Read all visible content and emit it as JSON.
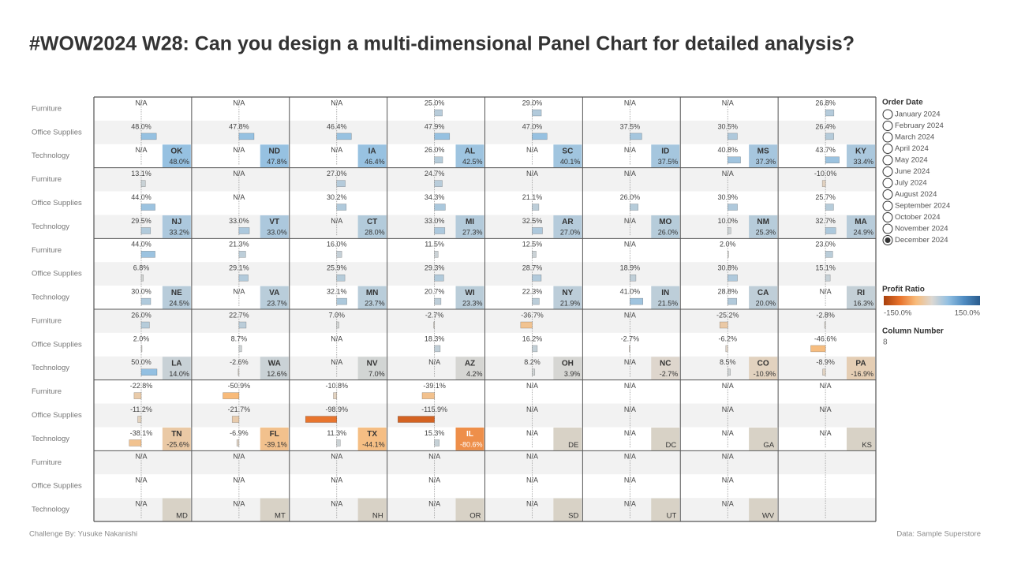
{
  "chart_data": {
    "type": "panel",
    "title": "#WOW2024 W28: Can you design a multi-dimensional Panel Chart for detailed analysis?",
    "categories": [
      "Furniture",
      "Office Supplies",
      "Technology"
    ],
    "panels": [
      {
        "state": "OK",
        "ratio": 48.0,
        "ratio_label": "48.0%",
        "values": [
          null,
          48.0,
          null
        ],
        "value_labels": [
          "N/A",
          "48.0%",
          "N/A"
        ]
      },
      {
        "state": "ND",
        "ratio": 47.8,
        "ratio_label": "47.8%",
        "values": [
          null,
          47.8,
          null
        ],
        "value_labels": [
          "N/A",
          "47.8%",
          "N/A"
        ]
      },
      {
        "state": "IA",
        "ratio": 46.4,
        "ratio_label": "46.4%",
        "values": [
          null,
          46.4,
          null
        ],
        "value_labels": [
          "N/A",
          "46.4%",
          "N/A"
        ]
      },
      {
        "state": "AL",
        "ratio": 42.5,
        "ratio_label": "42.5%",
        "values": [
          25.0,
          47.9,
          26.0
        ],
        "value_labels": [
          "25.0%",
          "47.9%",
          "26.0%"
        ]
      },
      {
        "state": "SC",
        "ratio": 40.1,
        "ratio_label": "40.1%",
        "values": [
          29.0,
          47.0,
          null
        ],
        "value_labels": [
          "29.0%",
          "47.0%",
          "N/A"
        ]
      },
      {
        "state": "ID",
        "ratio": 37.5,
        "ratio_label": "37.5%",
        "values": [
          null,
          37.5,
          null
        ],
        "value_labels": [
          "N/A",
          "37.5%",
          "N/A"
        ]
      },
      {
        "state": "MS",
        "ratio": 37.3,
        "ratio_label": "37.3%",
        "values": [
          null,
          30.5,
          40.8
        ],
        "value_labels": [
          "N/A",
          "30.5%",
          "40.8%"
        ]
      },
      {
        "state": "KY",
        "ratio": 33.4,
        "ratio_label": "33.4%",
        "values": [
          26.8,
          26.4,
          43.7
        ],
        "value_labels": [
          "26.8%",
          "26.4%",
          "43.7%"
        ]
      },
      {
        "state": "NJ",
        "ratio": 33.2,
        "ratio_label": "33.2%",
        "values": [
          13.1,
          44.0,
          29.5
        ],
        "value_labels": [
          "13.1%",
          "44.0%",
          "29.5%"
        ]
      },
      {
        "state": "VT",
        "ratio": 33.0,
        "ratio_label": "33.0%",
        "values": [
          null,
          null,
          33.0
        ],
        "value_labels": [
          "N/A",
          "N/A",
          "33.0%"
        ]
      },
      {
        "state": "CT",
        "ratio": 28.0,
        "ratio_label": "28.0%",
        "values": [
          27.0,
          30.2,
          null
        ],
        "value_labels": [
          "27.0%",
          "30.2%",
          "N/A"
        ]
      },
      {
        "state": "MI",
        "ratio": 27.3,
        "ratio_label": "27.3%",
        "values": [
          24.7,
          34.3,
          33.0
        ],
        "value_labels": [
          "24.7%",
          "34.3%",
          "33.0%"
        ]
      },
      {
        "state": "AR",
        "ratio": 27.0,
        "ratio_label": "27.0%",
        "values": [
          null,
          21.1,
          32.5
        ],
        "value_labels": [
          "N/A",
          "21.1%",
          "32.5%"
        ]
      },
      {
        "state": "MO",
        "ratio": 26.0,
        "ratio_label": "26.0%",
        "values": [
          null,
          26.0,
          null
        ],
        "value_labels": [
          "N/A",
          "26.0%",
          "N/A"
        ]
      },
      {
        "state": "NM",
        "ratio": 25.3,
        "ratio_label": "25.3%",
        "values": [
          null,
          30.9,
          10.0
        ],
        "value_labels": [
          "N/A",
          "30.9%",
          "10.0%"
        ]
      },
      {
        "state": "MA",
        "ratio": 24.9,
        "ratio_label": "24.9%",
        "values": [
          -10.0,
          25.7,
          32.7
        ],
        "value_labels": [
          "-10.0%",
          "25.7%",
          "32.7%"
        ]
      },
      {
        "state": "NE",
        "ratio": 24.5,
        "ratio_label": "24.5%",
        "values": [
          44.0,
          6.8,
          30.0
        ],
        "value_labels": [
          "44.0%",
          "6.8%",
          "30.0%"
        ]
      },
      {
        "state": "VA",
        "ratio": 23.7,
        "ratio_label": "23.7%",
        "values": [
          21.3,
          29.1,
          null
        ],
        "value_labels": [
          "21.3%",
          "29.1%",
          "N/A"
        ]
      },
      {
        "state": "MN",
        "ratio": 23.7,
        "ratio_label": "23.7%",
        "values": [
          16.0,
          25.9,
          32.1
        ],
        "value_labels": [
          "16.0%",
          "25.9%",
          "32.1%"
        ]
      },
      {
        "state": "WI",
        "ratio": 23.3,
        "ratio_label": "23.3%",
        "values": [
          11.5,
          29.3,
          20.7
        ],
        "value_labels": [
          "11.5%",
          "29.3%",
          "20.7%"
        ]
      },
      {
        "state": "NY",
        "ratio": 21.9,
        "ratio_label": "21.9%",
        "values": [
          12.5,
          28.7,
          22.3
        ],
        "value_labels": [
          "12.5%",
          "28.7%",
          "22.3%"
        ]
      },
      {
        "state": "IN",
        "ratio": 21.5,
        "ratio_label": "21.5%",
        "values": [
          null,
          18.9,
          41.0
        ],
        "value_labels": [
          "N/A",
          "18.9%",
          "41.0%"
        ]
      },
      {
        "state": "CA",
        "ratio": 20.0,
        "ratio_label": "20.0%",
        "values": [
          2.0,
          30.8,
          28.8
        ],
        "value_labels": [
          "2.0%",
          "30.8%",
          "28.8%"
        ]
      },
      {
        "state": "RI",
        "ratio": 16.3,
        "ratio_label": "16.3%",
        "values": [
          23.0,
          15.1,
          null
        ],
        "value_labels": [
          "23.0%",
          "15.1%",
          "N/A"
        ]
      },
      {
        "state": "LA",
        "ratio": 14.0,
        "ratio_label": "14.0%",
        "values": [
          26.0,
          2.0,
          50.0
        ],
        "value_labels": [
          "26.0%",
          "2.0%",
          "50.0%"
        ]
      },
      {
        "state": "WA",
        "ratio": 12.6,
        "ratio_label": "12.6%",
        "values": [
          22.7,
          8.7,
          -2.6
        ],
        "value_labels": [
          "22.7%",
          "8.7%",
          "-2.6%"
        ]
      },
      {
        "state": "NV",
        "ratio": 7.0,
        "ratio_label": "7.0%",
        "values": [
          7.0,
          null,
          null
        ],
        "value_labels": [
          "7.0%",
          "N/A",
          "N/A"
        ]
      },
      {
        "state": "AZ",
        "ratio": 4.2,
        "ratio_label": "4.2%",
        "values": [
          -2.7,
          18.3,
          null
        ],
        "value_labels": [
          "-2.7%",
          "18.3%",
          "N/A"
        ]
      },
      {
        "state": "OH",
        "ratio": 3.9,
        "ratio_label": "3.9%",
        "values": [
          -36.7,
          16.2,
          8.2
        ],
        "value_labels": [
          "-36.7%",
          "16.2%",
          "8.2%"
        ]
      },
      {
        "state": "NC",
        "ratio": -2.7,
        "ratio_label": "-2.7%",
        "values": [
          null,
          -2.7,
          null
        ],
        "value_labels": [
          "N/A",
          "-2.7%",
          "N/A"
        ]
      },
      {
        "state": "CO",
        "ratio": -10.9,
        "ratio_label": "-10.9%",
        "values": [
          -25.2,
          -6.2,
          8.5
        ],
        "value_labels": [
          "-25.2%",
          "-6.2%",
          "8.5%"
        ]
      },
      {
        "state": "PA",
        "ratio": -16.9,
        "ratio_label": "-16.9%",
        "values": [
          -2.8,
          -46.6,
          -8.9
        ],
        "value_labels": [
          "-2.8%",
          "-46.6%",
          "-8.9%"
        ]
      },
      {
        "state": "TN",
        "ratio": -25.6,
        "ratio_label": "-25.6%",
        "values": [
          -22.8,
          -11.2,
          -38.1
        ],
        "value_labels": [
          "-22.8%",
          "-11.2%",
          "-38.1%"
        ]
      },
      {
        "state": "FL",
        "ratio": -39.1,
        "ratio_label": "-39.1%",
        "values": [
          -50.9,
          -21.7,
          -6.9
        ],
        "value_labels": [
          "-50.9%",
          "-21.7%",
          "-6.9%"
        ]
      },
      {
        "state": "TX",
        "ratio": -44.1,
        "ratio_label": "-44.1%",
        "values": [
          -10.8,
          -98.9,
          11.3
        ],
        "value_labels": [
          "-10.8%",
          "-98.9%",
          "11.3%"
        ]
      },
      {
        "state": "IL",
        "ratio": -80.6,
        "ratio_label": "-80.6%",
        "values": [
          -39.1,
          -115.9,
          15.3
        ],
        "value_labels": [
          "-39.1%",
          "-115.9%",
          "15.3%"
        ]
      },
      {
        "state": "DE",
        "ratio": null,
        "values": [
          null,
          null,
          null
        ],
        "value_labels": [
          "N/A",
          "N/A",
          "N/A"
        ]
      },
      {
        "state": "DC",
        "ratio": null,
        "values": [
          null,
          null,
          null
        ],
        "value_labels": [
          "N/A",
          "N/A",
          "N/A"
        ]
      },
      {
        "state": "GA",
        "ratio": null,
        "values": [
          null,
          null,
          null
        ],
        "value_labels": [
          "N/A",
          "N/A",
          "N/A"
        ]
      },
      {
        "state": "KS",
        "ratio": null,
        "values": [
          null,
          null,
          null
        ],
        "value_labels": [
          "N/A",
          "N/A",
          "N/A"
        ]
      },
      {
        "state": "MD",
        "ratio": null,
        "values": [
          null,
          null,
          null
        ],
        "value_labels": [
          "N/A",
          "N/A",
          "N/A"
        ]
      },
      {
        "state": "MT",
        "ratio": null,
        "values": [
          null,
          null,
          null
        ],
        "value_labels": [
          "N/A",
          "N/A",
          "N/A"
        ]
      },
      {
        "state": "NH",
        "ratio": null,
        "values": [
          null,
          null,
          null
        ],
        "value_labels": [
          "N/A",
          "N/A",
          "N/A"
        ]
      },
      {
        "state": "OR",
        "ratio": null,
        "values": [
          null,
          null,
          null
        ],
        "value_labels": [
          "N/A",
          "N/A",
          "N/A"
        ]
      },
      {
        "state": "SD",
        "ratio": null,
        "values": [
          null,
          null,
          null
        ],
        "value_labels": [
          "N/A",
          "N/A",
          "N/A"
        ]
      },
      {
        "state": "UT",
        "ratio": null,
        "values": [
          null,
          null,
          null
        ],
        "value_labels": [
          "N/A",
          "N/A",
          "N/A"
        ]
      },
      {
        "state": "WV",
        "ratio": null,
        "values": [
          null,
          null,
          null
        ],
        "value_labels": [
          "N/A",
          "N/A",
          "N/A"
        ]
      }
    ],
    "no_data_color": "#d8d2c6",
    "order_date": {
      "title": "Order Date",
      "options": [
        "January 2024",
        "February 2024",
        "March 2024",
        "April 2024",
        "May 2024",
        "June 2024",
        "July 2024",
        "August 2024",
        "September 2024",
        "October 2024",
        "November 2024",
        "December 2024"
      ],
      "selected": "December 2024"
    },
    "color_scale": {
      "title": "Profit Ratio",
      "ticks": [
        {
          "value": -150,
          "label": "-150.0%"
        },
        {
          "value": 150,
          "label": "150.0%"
        }
      ],
      "colors": [
        "#a8400c",
        "#e8732c",
        "#f8bb7a",
        "#dcd8d2",
        "#93c0e2",
        "#4f8cc2",
        "#2a5c8e"
      ]
    },
    "column_number": {
      "title": "Column Number",
      "value": 8
    },
    "footer_left": "Challenge By: Yusuke Nakanishi",
    "footer_right": "Data: Sample Superstore"
  }
}
